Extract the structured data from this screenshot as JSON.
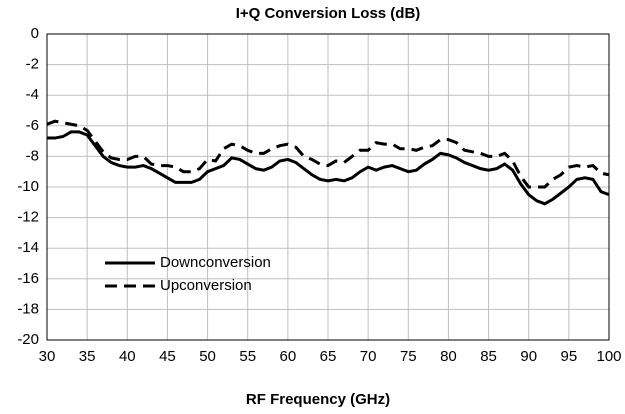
{
  "chart_data": {
    "type": "line",
    "title": "I+Q Conversion Loss (dB)",
    "x_label": "RF Frequency  (GHz)",
    "x": [
      30,
      31,
      32,
      33,
      34,
      35,
      36,
      37,
      38,
      39,
      40,
      41,
      42,
      43,
      44,
      45,
      46,
      47,
      48,
      49,
      50,
      51,
      52,
      53,
      54,
      55,
      56,
      57,
      58,
      59,
      60,
      61,
      62,
      63,
      64,
      65,
      66,
      67,
      68,
      69,
      70,
      71,
      72,
      73,
      74,
      75,
      76,
      77,
      78,
      79,
      80,
      81,
      82,
      83,
      84,
      85,
      86,
      87,
      88,
      89,
      90,
      91,
      92,
      93,
      94,
      95,
      96,
      97,
      98,
      99,
      100
    ],
    "series": [
      {
        "name": "Downconversion",
        "color": "#000000",
        "style": "solid",
        "values": [
          -6.8,
          -6.8,
          -6.7,
          -6.4,
          -6.4,
          -6.6,
          -7.3,
          -8.0,
          -8.4,
          -8.6,
          -8.7,
          -8.7,
          -8.6,
          -8.8,
          -9.1,
          -9.4,
          -9.7,
          -9.7,
          -9.7,
          -9.5,
          -9.0,
          -8.8,
          -8.6,
          -8.1,
          -8.2,
          -8.5,
          -8.8,
          -8.9,
          -8.7,
          -8.3,
          -8.2,
          -8.4,
          -8.8,
          -9.2,
          -9.5,
          -9.6,
          -9.5,
          -9.6,
          -9.4,
          -9.0,
          -8.7,
          -8.9,
          -8.7,
          -8.6,
          -8.8,
          -9.0,
          -8.9,
          -8.5,
          -8.2,
          -7.8,
          -7.9,
          -8.1,
          -8.4,
          -8.6,
          -8.8,
          -8.9,
          -8.8,
          -8.5,
          -8.9,
          -9.8,
          -10.5,
          -10.9,
          -11.1,
          -10.8,
          -10.4,
          -10.0,
          -9.5,
          -9.4,
          -9.5,
          -10.3,
          -10.5
        ]
      },
      {
        "name": "Upconversion",
        "color": "#000000",
        "style": "dashed",
        "values": [
          -5.9,
          -5.7,
          -5.8,
          -5.9,
          -6.0,
          -6.3,
          -7.0,
          -7.7,
          -8.1,
          -8.2,
          -8.2,
          -8.0,
          -8.0,
          -8.5,
          -8.6,
          -8.6,
          -8.7,
          -9.0,
          -9.0,
          -8.8,
          -8.2,
          -8.3,
          -7.5,
          -7.2,
          -7.3,
          -7.6,
          -7.8,
          -7.8,
          -7.5,
          -7.3,
          -7.2,
          -7.4,
          -8.0,
          -8.2,
          -8.5,
          -8.6,
          -8.3,
          -8.4,
          -8.0,
          -7.6,
          -7.6,
          -7.1,
          -7.2,
          -7.2,
          -7.5,
          -7.5,
          -7.6,
          -7.4,
          -7.3,
          -6.9,
          -6.9,
          -7.1,
          -7.6,
          -7.7,
          -7.8,
          -8.0,
          -8.0,
          -7.8,
          -8.3,
          -9.3,
          -10.0,
          -10.0,
          -10.0,
          -9.5,
          -9.2,
          -8.7,
          -8.6,
          -8.7,
          -8.6,
          -9.1,
          -9.2
        ]
      }
    ],
    "xlim": [
      30,
      100
    ],
    "xticks": [
      30,
      35,
      40,
      45,
      50,
      55,
      60,
      65,
      70,
      75,
      80,
      85,
      90,
      95,
      100
    ],
    "ylim": [
      -20,
      0
    ],
    "yticks": [
      -20,
      -18,
      -16,
      -14,
      -12,
      -10,
      -8,
      -6,
      -4,
      -2,
      0
    ],
    "grid": true,
    "legend": "lower left"
  }
}
